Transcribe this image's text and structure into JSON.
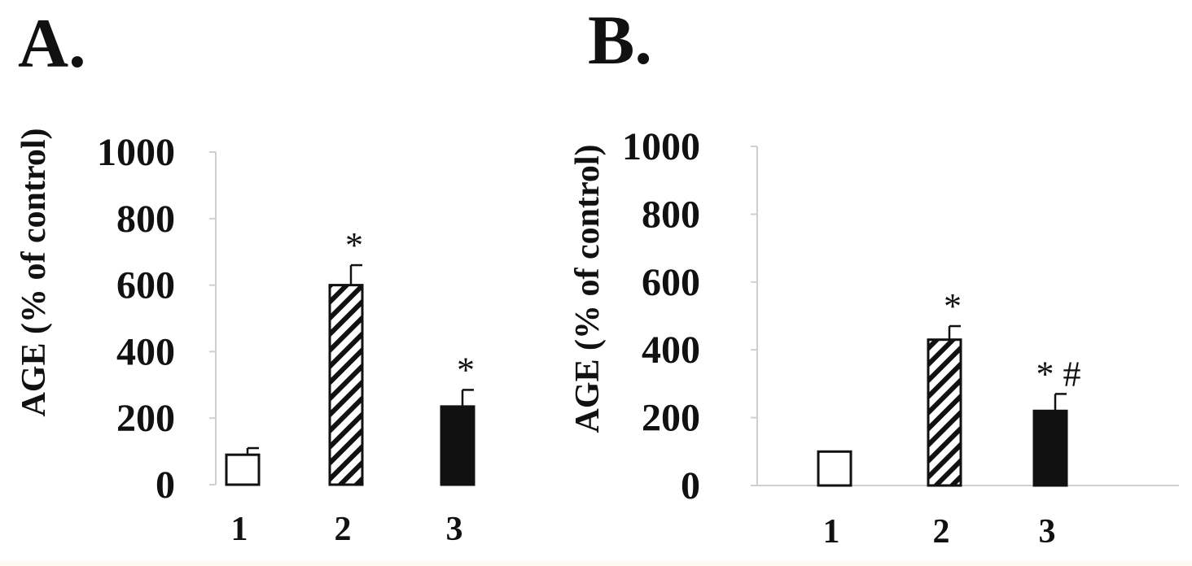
{
  "chart_data": [
    {
      "type": "bar",
      "panel_label": "A.",
      "ylabel": "AGE (% of control)",
      "ylim": [
        0,
        1000
      ],
      "yticks": [
        0,
        200,
        400,
        600,
        800,
        1000
      ],
      "categories": [
        "1",
        "2",
        "3"
      ],
      "values": [
        90,
        600,
        235
      ],
      "errors": [
        20,
        60,
        50
      ],
      "bar_styles": [
        "white",
        "hatched",
        "black"
      ],
      "annotations": [
        "",
        "*",
        "*"
      ],
      "grid": false
    },
    {
      "type": "bar",
      "panel_label": "B.",
      "ylabel": "AGE (% of control)",
      "ylim": [
        0,
        1000
      ],
      "yticks": [
        0,
        200,
        400,
        600,
        800,
        1000
      ],
      "categories": [
        "1",
        "2",
        "3"
      ],
      "values": [
        100,
        430,
        220
      ],
      "errors": [
        0,
        40,
        50
      ],
      "bar_styles": [
        "white",
        "hatched",
        "black"
      ],
      "annotations": [
        "",
        "*",
        "* #"
      ],
      "grid": false
    }
  ]
}
